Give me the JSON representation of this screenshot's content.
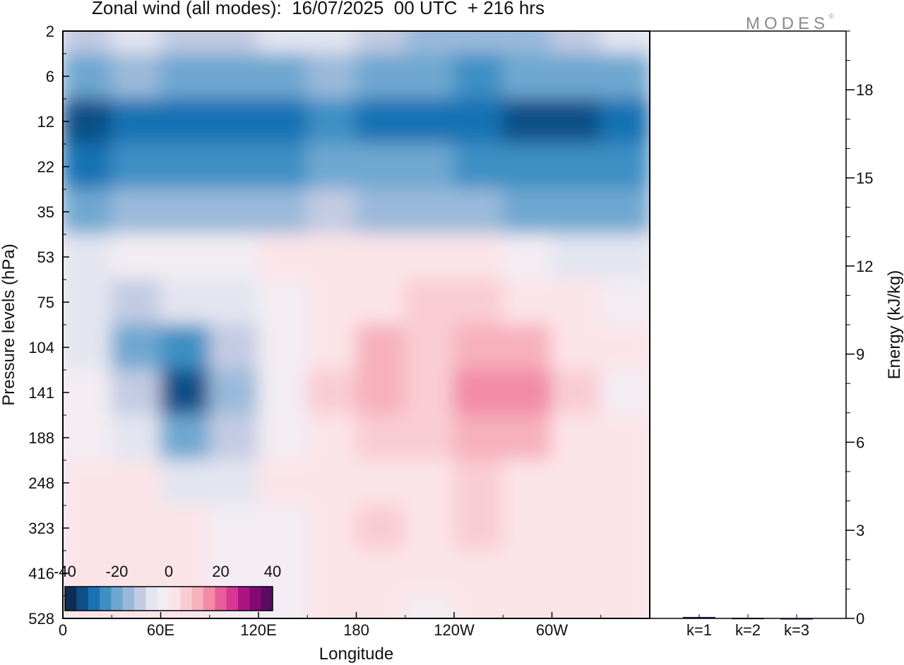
{
  "title": "Zonal wind (all modes):  16/07/2025  00 UTC  + 216 hrs",
  "brand": "MODES",
  "brand_mark": "©",
  "colors": [
    "#0d2e52",
    "#0f4f87",
    "#1972b4",
    "#3e8fc4",
    "#6ea7d0",
    "#9ab9da",
    "#c3cbe2",
    "#e3e5f0",
    "#f3edf3",
    "#fbe4e8",
    "#f9ccd3",
    "#f7b0bc",
    "#f28aa8",
    "#e85d9b",
    "#d63795",
    "#ad1483",
    "#850873",
    "#5a0d63"
  ],
  "chart_data": [
    {
      "type": "heatmap",
      "title": "Zonal wind (all modes):  16/07/2025  00 UTC  + 216 hrs",
      "xlabel": "Longitude",
      "ylabel": "Pressure levels (hPa)",
      "x_ticks": [
        "0",
        "60E",
        "120E",
        "180",
        "120W",
        "60W"
      ],
      "y_ticks": [
        "2",
        "6",
        "12",
        "22",
        "35",
        "53",
        "75",
        "104",
        "141",
        "188",
        "248",
        "323",
        "416",
        "528"
      ],
      "colorbar_ticks": [
        "-40",
        "-20",
        "0",
        "20",
        "40"
      ],
      "colorbar_range": [
        -40,
        40
      ],
      "longitudes_east": [
        0,
        30,
        60,
        90,
        120,
        150,
        180,
        210,
        240,
        270,
        300,
        330
      ],
      "levels": [
        2,
        6,
        12,
        22,
        35,
        53,
        75,
        104,
        141,
        188,
        248,
        323,
        416,
        528
      ],
      "values": [
        [
          -10,
          -8,
          -12,
          -10,
          -8,
          -6,
          -10,
          -14,
          -16,
          -14,
          -12,
          -8
        ],
        [
          -20,
          -16,
          -18,
          -20,
          -18,
          -16,
          -20,
          -22,
          -24,
          -22,
          -20,
          -18
        ],
        [
          -32,
          -30,
          -30,
          -30,
          -28,
          -26,
          -28,
          -28,
          -30,
          -32,
          -32,
          -30
        ],
        [
          -28,
          -26,
          -26,
          -26,
          -24,
          -22,
          -22,
          -22,
          -24,
          -26,
          -26,
          -26
        ],
        [
          -18,
          -16,
          -16,
          -16,
          -14,
          -12,
          -14,
          -14,
          -16,
          -18,
          -18,
          -18
        ],
        [
          -6,
          -4,
          -4,
          -4,
          0,
          2,
          4,
          4,
          2,
          -4,
          -8,
          -8
        ],
        [
          -6,
          -10,
          -8,
          -6,
          -2,
          2,
          4,
          6,
          6,
          4,
          2,
          -2
        ],
        [
          -8,
          -20,
          -26,
          -10,
          -4,
          4,
          10,
          6,
          12,
          10,
          4,
          0
        ],
        [
          -4,
          -12,
          -32,
          -16,
          -4,
          6,
          12,
          8,
          16,
          14,
          6,
          -2
        ],
        [
          -2,
          -6,
          -18,
          -12,
          -2,
          4,
          8,
          6,
          12,
          10,
          4,
          0
        ],
        [
          2,
          0,
          -6,
          -6,
          0,
          2,
          4,
          4,
          6,
          4,
          2,
          2
        ],
        [
          4,
          2,
          0,
          -4,
          -2,
          4,
          6,
          2,
          6,
          4,
          2,
          4
        ],
        [
          2,
          2,
          2,
          -4,
          -2,
          2,
          4,
          0,
          4,
          4,
          2,
          2
        ],
        [
          0,
          2,
          2,
          -4,
          -2,
          0,
          2,
          -2,
          2,
          2,
          0,
          0
        ]
      ]
    },
    {
      "type": "bar",
      "ylabel": "Energy (kJ/kg)",
      "categories": [
        "k=1",
        "k=2",
        "k=3"
      ],
      "values": [
        0.05,
        0.02,
        0.01
      ],
      "ylim": [
        0,
        20
      ],
      "y_ticks": [
        "0",
        "3",
        "6",
        "9",
        "12",
        "15",
        "18"
      ]
    }
  ]
}
